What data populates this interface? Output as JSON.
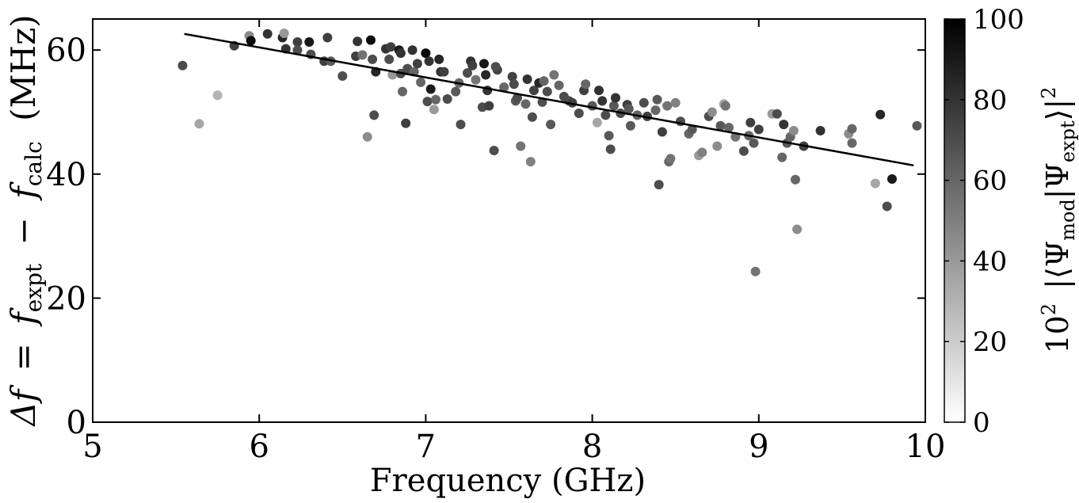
{
  "chart_data": {
    "type": "scatter",
    "xlabel": "Frequency (GHz)",
    "ylabel_parts": {
      "delta_f": "Δf",
      "equals": "=",
      "f1": "f",
      "sub1": "expt",
      "minus": "−",
      "f2": "f",
      "sub2": "calc",
      "unit": "(MHz)"
    },
    "xlim": [
      5,
      10
    ],
    "ylim": [
      0,
      65
    ],
    "xticks": [
      5,
      6,
      7,
      8,
      9,
      10
    ],
    "yticks": [
      0,
      20,
      40,
      60
    ],
    "colorbar": {
      "range": [
        0,
        100
      ],
      "ticks": [
        0,
        20,
        40,
        60,
        80,
        100
      ],
      "label_parts": {
        "prefix": "10",
        "exp": "2",
        "open": "|⟨Ψ",
        "sub_mod": "mod",
        "mid": "|Ψ",
        "sub_expt": "expt",
        "close": "⟩|",
        "sq": "2"
      }
    },
    "fit_line": {
      "x": [
        5.55,
        9.93
      ],
      "y": [
        62.6,
        41.4
      ]
    },
    "points": [
      [
        5.54,
        57.5,
        70
      ],
      [
        5.64,
        48.1,
        35
      ],
      [
        5.75,
        52.7,
        30
      ],
      [
        5.85,
        60.7,
        75
      ],
      [
        5.94,
        62.3,
        45
      ],
      [
        5.95,
        61.5,
        95
      ],
      [
        6.05,
        62.6,
        80
      ],
      [
        6.14,
        62.0,
        85
      ],
      [
        6.15,
        62.7,
        40
      ],
      [
        6.16,
        60.2,
        80
      ],
      [
        6.23,
        61.3,
        75
      ],
      [
        6.23,
        60.0,
        70
      ],
      [
        6.3,
        61.3,
        90
      ],
      [
        6.31,
        59.3,
        70
      ],
      [
        6.39,
        58.2,
        75
      ],
      [
        6.41,
        62.0,
        75
      ],
      [
        6.43,
        58.2,
        65
      ],
      [
        6.5,
        55.8,
        70
      ],
      [
        6.58,
        59.0,
        75
      ],
      [
        6.59,
        61.4,
        80
      ],
      [
        6.62,
        59.2,
        55
      ],
      [
        6.65,
        46.0,
        45
      ],
      [
        6.67,
        61.6,
        95
      ],
      [
        6.68,
        58.5,
        70
      ],
      [
        6.69,
        49.5,
        70
      ],
      [
        6.7,
        56.5,
        85
      ],
      [
        6.76,
        60.2,
        80
      ],
      [
        6.78,
        58.5,
        70
      ],
      [
        6.79,
        60.5,
        75
      ],
      [
        6.8,
        56.0,
        40
      ],
      [
        6.84,
        60.0,
        90
      ],
      [
        6.85,
        59.5,
        80
      ],
      [
        6.85,
        56.2,
        70
      ],
      [
        6.86,
        53.3,
        60
      ],
      [
        6.88,
        48.2,
        75
      ],
      [
        6.89,
        57.0,
        70
      ],
      [
        6.92,
        60.0,
        80
      ],
      [
        6.93,
        56.5,
        60
      ],
      [
        6.95,
        57.8,
        75
      ],
      [
        6.97,
        54.8,
        60
      ],
      [
        7.0,
        59.5,
        95
      ],
      [
        7.01,
        51.7,
        70
      ],
      [
        7.02,
        58.2,
        80
      ],
      [
        7.03,
        53.7,
        90
      ],
      [
        7.05,
        50.4,
        40
      ],
      [
        7.06,
        52.0,
        60
      ],
      [
        7.08,
        58.5,
        85
      ],
      [
        7.09,
        56.5,
        80
      ],
      [
        7.11,
        56.5,
        75
      ],
      [
        7.13,
        52.1,
        70
      ],
      [
        7.18,
        53.3,
        65
      ],
      [
        7.2,
        54.7,
        60
      ],
      [
        7.21,
        48.0,
        70
      ],
      [
        7.25,
        56.3,
        70
      ],
      [
        7.27,
        58.2,
        80
      ],
      [
        7.28,
        57.5,
        75
      ],
      [
        7.3,
        55.2,
        55
      ],
      [
        7.34,
        50.8,
        70
      ],
      [
        7.35,
        57.8,
        90
      ],
      [
        7.36,
        56.0,
        85
      ],
      [
        7.37,
        53.5,
        80
      ],
      [
        7.38,
        51.0,
        75
      ],
      [
        7.41,
        43.8,
        70
      ],
      [
        7.43,
        56.8,
        75
      ],
      [
        7.42,
        57.3,
        70
      ],
      [
        7.47,
        54.0,
        60
      ],
      [
        7.52,
        55.7,
        75
      ],
      [
        7.53,
        54.5,
        70
      ],
      [
        7.54,
        51.8,
        65
      ],
      [
        7.55,
        52.3,
        70
      ],
      [
        7.57,
        44.5,
        55
      ],
      [
        7.6,
        51.3,
        60
      ],
      [
        7.61,
        55.3,
        80
      ],
      [
        7.63,
        42.0,
        50
      ],
      [
        7.64,
        49.2,
        70
      ],
      [
        7.65,
        53.5,
        75
      ],
      [
        7.68,
        54.7,
        85
      ],
      [
        7.7,
        51.6,
        70
      ],
      [
        7.71,
        55.0,
        60
      ],
      [
        7.73,
        53.3,
        70
      ],
      [
        7.75,
        48.0,
        65
      ],
      [
        7.77,
        56.0,
        55
      ],
      [
        7.8,
        54.3,
        60
      ],
      [
        7.83,
        52.5,
        70
      ],
      [
        7.86,
        51.8,
        70
      ],
      [
        7.88,
        51.5,
        75
      ],
      [
        7.92,
        49.8,
        70
      ],
      [
        7.95,
        53.5,
        75
      ],
      [
        7.96,
        54.5,
        60
      ],
      [
        8.0,
        51.0,
        65
      ],
      [
        8.03,
        48.3,
        35
      ],
      [
        8.04,
        53.5,
        80
      ],
      [
        8.06,
        51.8,
        80
      ],
      [
        8.08,
        49.5,
        70
      ],
      [
        8.1,
        46.2,
        65
      ],
      [
        8.11,
        44.0,
        70
      ],
      [
        8.13,
        51.0,
        65
      ],
      [
        8.14,
        52.3,
        80
      ],
      [
        8.17,
        49.8,
        70
      ],
      [
        8.21,
        51.2,
        75
      ],
      [
        8.22,
        50.5,
        65
      ],
      [
        8.23,
        47.8,
        65
      ],
      [
        8.27,
        49.5,
        60
      ],
      [
        8.31,
        51.5,
        70
      ],
      [
        8.33,
        49.3,
        75
      ],
      [
        8.38,
        50.3,
        60
      ],
      [
        8.39,
        52.0,
        65
      ],
      [
        8.4,
        38.3,
        70
      ],
      [
        8.42,
        46.8,
        75
      ],
      [
        8.45,
        51.0,
        55
      ],
      [
        8.46,
        42.0,
        60
      ],
      [
        8.47,
        42.5,
        55
      ],
      [
        8.5,
        51.5,
        50
      ],
      [
        8.53,
        48.5,
        70
      ],
      [
        8.58,
        46.5,
        60
      ],
      [
        8.6,
        47.2,
        65
      ],
      [
        8.64,
        43.0,
        40
      ],
      [
        8.66,
        43.5,
        50
      ],
      [
        8.7,
        49.3,
        70
      ],
      [
        8.72,
        50.0,
        45
      ],
      [
        8.75,
        44.5,
        45
      ],
      [
        8.77,
        47.8,
        65
      ],
      [
        8.79,
        51.3,
        35
      ],
      [
        8.8,
        51.0,
        55
      ],
      [
        8.82,
        47.5,
        60
      ],
      [
        8.86,
        46.0,
        55
      ],
      [
        8.91,
        43.7,
        70
      ],
      [
        8.94,
        46.2,
        60
      ],
      [
        8.95,
        48.3,
        75
      ],
      [
        8.97,
        45.0,
        65
      ],
      [
        8.98,
        24.3,
        55
      ],
      [
        9.0,
        47.2,
        75
      ],
      [
        9.08,
        49.7,
        40
      ],
      [
        9.11,
        49.7,
        70
      ],
      [
        9.14,
        42.7,
        60
      ],
      [
        9.15,
        48.0,
        80
      ],
      [
        9.17,
        45.0,
        65
      ],
      [
        9.19,
        46.0,
        60
      ],
      [
        9.21,
        47.0,
        45
      ],
      [
        9.22,
        39.1,
        60
      ],
      [
        9.23,
        31.1,
        45
      ],
      [
        9.27,
        44.5,
        75
      ],
      [
        9.37,
        47.0,
        80
      ],
      [
        9.54,
        46.5,
        45
      ],
      [
        9.56,
        45.0,
        60
      ],
      [
        9.56,
        47.3,
        60
      ],
      [
        9.7,
        38.5,
        35
      ],
      [
        9.73,
        49.6,
        85
      ],
      [
        9.77,
        34.8,
        70
      ],
      [
        9.8,
        39.2,
        90
      ],
      [
        9.95,
        47.8,
        65
      ]
    ]
  }
}
